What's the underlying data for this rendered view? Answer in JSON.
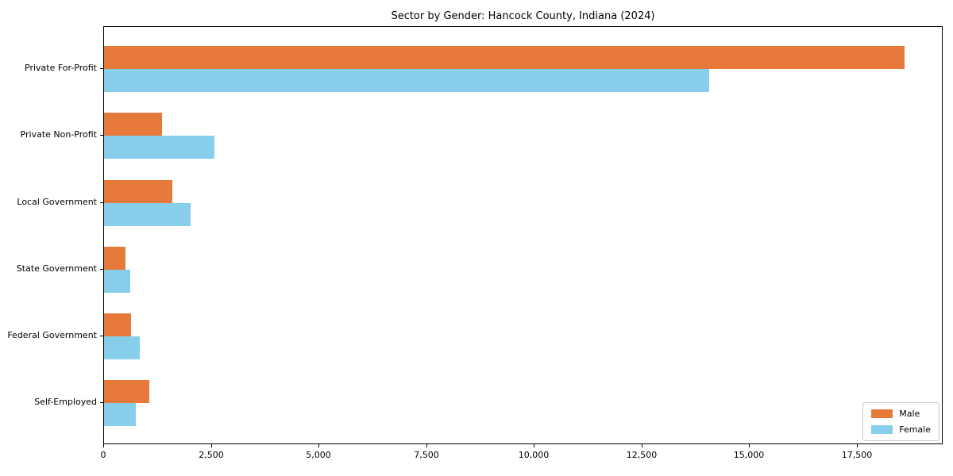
{
  "title": "Sector by Gender: Hancock County, Indiana (2024)",
  "chart_data": {
    "type": "bar",
    "orientation": "horizontal",
    "title": "Sector by Gender: Hancock County, Indiana (2024)",
    "categories": [
      "Private For-Profit",
      "Private Non-Profit",
      "Local Government",
      "State Government",
      "Federal Government",
      "Self-Employed"
    ],
    "series": [
      {
        "name": "Male",
        "color": "#E7793A",
        "values": [
          18590,
          1350,
          1580,
          490,
          625,
          1060
        ]
      },
      {
        "name": "Female",
        "color": "#87CEEB",
        "values": [
          14060,
          2560,
          2020,
          610,
          835,
          735
        ]
      }
    ],
    "xlabel": "",
    "ylabel": "",
    "xlim": [
      0,
      19500
    ],
    "xticks": [
      0,
      2500,
      5000,
      7500,
      10000,
      12500,
      15000,
      17500
    ],
    "xtick_labels": [
      "0",
      "2,500",
      "5,000",
      "7,500",
      "10,000",
      "12,500",
      "15,000",
      "17,500"
    ],
    "grid": false,
    "legend_position": "lower right",
    "background_color": "#ffffff",
    "spine_color": "#000000"
  }
}
